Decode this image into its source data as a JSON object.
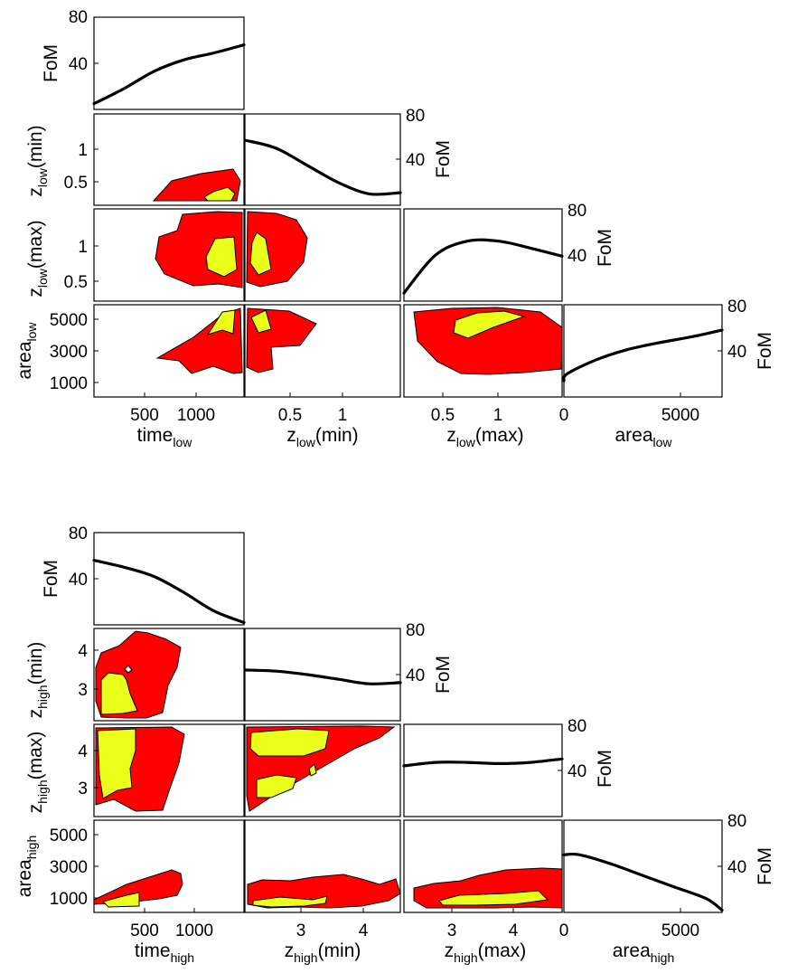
{
  "figure": {
    "type": "triangle corner plot: 1D FoM curves (diagonal) and 2D confidence contours (off-diagonal)"
  },
  "colors": {
    "outer_region": "#ff0000",
    "inner_region": "#eaff1a",
    "curve": "#000000"
  },
  "chart_data": [
    {
      "type": "corner",
      "name": "low",
      "parameters": [
        {
          "symbol": "time",
          "sub": "low",
          "suffix": "",
          "xticks": [
            "500",
            "1000"
          ],
          "yticks": []
        },
        {
          "symbol": "z",
          "sub": "low",
          "suffix": "(min)",
          "xticks": [
            "0.5",
            "1"
          ],
          "yticks": [
            "1",
            "0.5"
          ]
        },
        {
          "symbol": "z",
          "sub": "low",
          "suffix": "(max)",
          "xticks": [
            "0.5",
            "1",
            "0"
          ],
          "yticks": [
            "1",
            "0.5"
          ]
        },
        {
          "symbol": "area",
          "sub": "low",
          "suffix": "",
          "xticks": [
            "0",
            "5000"
          ],
          "yticks": [
            "5000",
            "3000",
            "1000"
          ]
        }
      ],
      "fom_label": "FoM",
      "fom_ticks": [
        "80",
        "40"
      ],
      "fom_ylim": [
        0,
        80
      ],
      "fom_curves": [
        {
          "param": "time_low",
          "x": [
            0,
            0.2,
            0.4,
            0.6,
            0.8,
            1.0
          ],
          "fom": [
            5,
            18,
            33,
            43,
            49,
            56
          ]
        },
        {
          "param": "z_low(min)",
          "x": [
            0,
            0.2,
            0.4,
            0.6,
            0.8,
            1.0
          ],
          "fom": [
            57,
            50,
            35,
            20,
            10,
            11
          ]
        },
        {
          "param": "z_low(max)",
          "x": [
            0,
            0.2,
            0.4,
            0.6,
            0.8,
            1.0
          ],
          "fom": [
            7,
            40,
            52,
            52,
            46,
            39
          ]
        },
        {
          "param": "area_low",
          "x": [
            0,
            0.02,
            0.2,
            0.4,
            0.6,
            0.8,
            1.0
          ],
          "fom": [
            14,
            20,
            32,
            41,
            47,
            52,
            58
          ]
        }
      ]
    },
    {
      "type": "corner",
      "name": "high",
      "parameters": [
        {
          "symbol": "time",
          "sub": "high",
          "suffix": "",
          "xticks": [
            "500",
            "1000"
          ],
          "yticks": []
        },
        {
          "symbol": "z",
          "sub": "high",
          "suffix": "(min)",
          "xticks": [
            "3",
            "4"
          ],
          "yticks": [
            "4",
            "3"
          ]
        },
        {
          "symbol": "z",
          "sub": "high",
          "suffix": "(max)",
          "xticks": [
            "3",
            "4",
            "0"
          ],
          "yticks": [
            "4",
            "3"
          ]
        },
        {
          "symbol": "area",
          "sub": "high",
          "suffix": "",
          "xticks": [
            "5000"
          ],
          "yticks": [
            "5000",
            "3000",
            "1000"
          ]
        }
      ],
      "fom_label": "FoM",
      "fom_ticks": [
        "80",
        "40"
      ],
      "fom_ylim": [
        0,
        80
      ],
      "fom_curves": [
        {
          "param": "time_high",
          "x": [
            0,
            0.2,
            0.4,
            0.6,
            0.8,
            1.0
          ],
          "fom": [
            56,
            50,
            42,
            28,
            12,
            2
          ]
        },
        {
          "param": "z_high(min)",
          "x": [
            0,
            0.2,
            0.4,
            0.6,
            0.8,
            1.0
          ],
          "fom": [
            44,
            43,
            40,
            36,
            32,
            33
          ]
        },
        {
          "param": "z_high(max)",
          "x": [
            0,
            0.2,
            0.4,
            0.6,
            0.8,
            1.0
          ],
          "fom": [
            44,
            47,
            47,
            46,
            47,
            50
          ]
        },
        {
          "param": "area_high",
          "x": [
            0,
            0.1,
            0.3,
            0.5,
            0.7,
            0.9,
            1.0
          ],
          "fom": [
            50,
            50,
            42,
            32,
            22,
            12,
            2
          ]
        }
      ]
    }
  ]
}
